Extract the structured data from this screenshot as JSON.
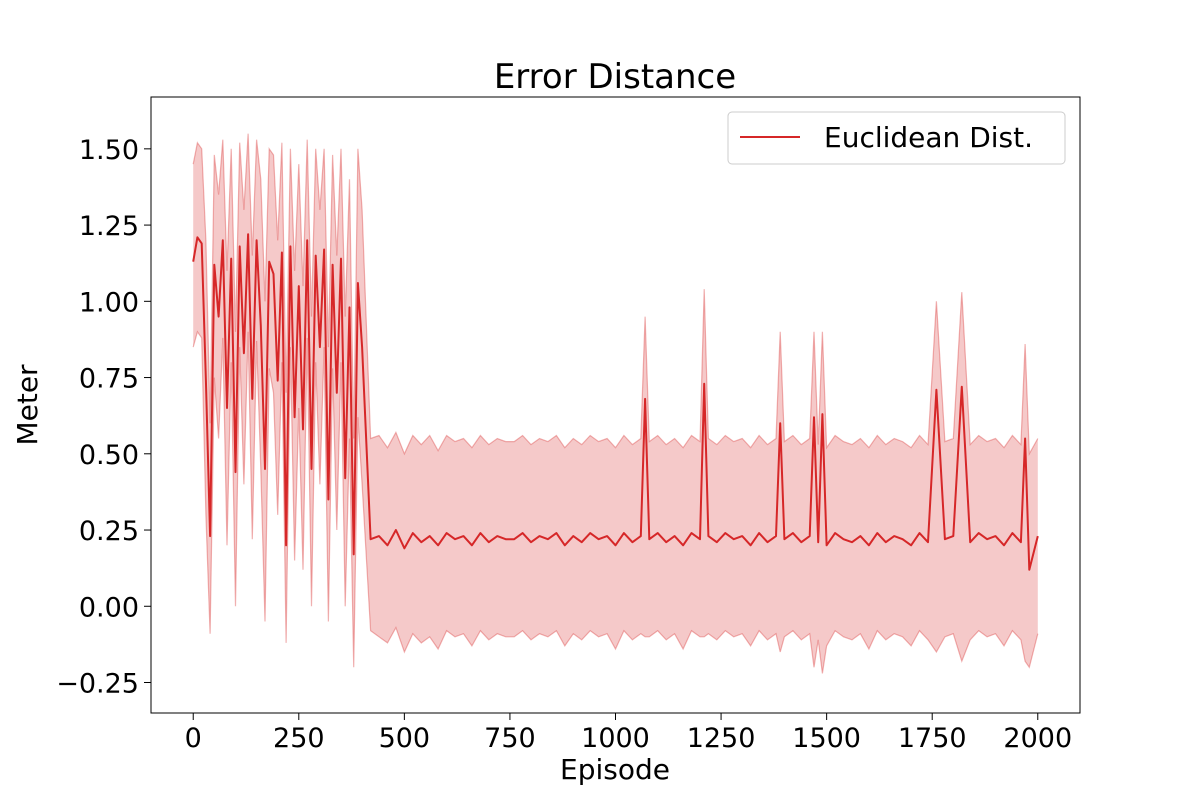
{
  "chart_data": {
    "type": "line",
    "title": "Error Distance",
    "xlabel": "Episode",
    "ylabel": "Meter",
    "xlim": [
      -100,
      2100
    ],
    "ylim": [
      -0.35,
      1.67
    ],
    "xticks": [
      0,
      250,
      500,
      750,
      1000,
      1250,
      1500,
      1750,
      2000
    ],
    "xtick_labels": [
      "0",
      "250",
      "500",
      "750",
      "1000",
      "1250",
      "1500",
      "1750",
      "2000"
    ],
    "yticks": [
      -0.25,
      0.0,
      0.25,
      0.5,
      0.75,
      1.0,
      1.25,
      1.5
    ],
    "ytick_labels": [
      "−0.25",
      "0.00",
      "0.25",
      "0.50",
      "0.75",
      "1.00",
      "1.25",
      "1.50"
    ],
    "grid": false,
    "legend": {
      "position": "upper right",
      "entries": [
        "Euclidean Dist."
      ]
    },
    "series": [
      {
        "name": "Euclidean Dist.",
        "color": "#d62728",
        "band_color": "#d62728",
        "x": [
          0,
          10,
          20,
          30,
          40,
          50,
          60,
          70,
          80,
          90,
          100,
          110,
          120,
          130,
          140,
          150,
          160,
          170,
          180,
          190,
          200,
          210,
          220,
          230,
          240,
          250,
          260,
          270,
          280,
          290,
          300,
          310,
          320,
          330,
          340,
          350,
          360,
          370,
          380,
          390,
          400,
          420,
          440,
          460,
          480,
          500,
          520,
          540,
          560,
          580,
          600,
          620,
          640,
          660,
          680,
          700,
          720,
          740,
          760,
          780,
          800,
          820,
          840,
          860,
          880,
          900,
          920,
          940,
          960,
          980,
          1000,
          1020,
          1040,
          1060,
          1070,
          1080,
          1100,
          1120,
          1140,
          1160,
          1180,
          1200,
          1210,
          1220,
          1240,
          1260,
          1280,
          1300,
          1320,
          1340,
          1360,
          1380,
          1390,
          1400,
          1420,
          1440,
          1460,
          1470,
          1480,
          1490,
          1500,
          1520,
          1540,
          1560,
          1580,
          1600,
          1620,
          1640,
          1660,
          1680,
          1700,
          1720,
          1740,
          1760,
          1780,
          1800,
          1820,
          1840,
          1860,
          1880,
          1900,
          1920,
          1940,
          1960,
          1970,
          1980,
          2000
        ],
        "y": [
          1.13,
          1.21,
          1.19,
          0.74,
          0.23,
          1.12,
          0.95,
          1.2,
          0.65,
          1.14,
          0.44,
          1.18,
          0.83,
          1.22,
          0.68,
          1.2,
          0.92,
          0.45,
          1.13,
          1.09,
          0.74,
          1.16,
          0.2,
          1.18,
          0.62,
          1.05,
          0.58,
          1.2,
          0.45,
          1.15,
          0.85,
          1.17,
          0.35,
          1.12,
          0.7,
          1.14,
          0.42,
          0.98,
          0.17,
          1.06,
          0.85,
          0.22,
          0.23,
          0.2,
          0.25,
          0.19,
          0.24,
          0.21,
          0.23,
          0.2,
          0.24,
          0.22,
          0.23,
          0.2,
          0.24,
          0.21,
          0.23,
          0.22,
          0.22,
          0.24,
          0.21,
          0.23,
          0.22,
          0.24,
          0.2,
          0.23,
          0.21,
          0.24,
          0.22,
          0.23,
          0.2,
          0.24,
          0.21,
          0.23,
          0.68,
          0.22,
          0.24,
          0.21,
          0.23,
          0.2,
          0.24,
          0.22,
          0.73,
          0.23,
          0.21,
          0.24,
          0.22,
          0.23,
          0.2,
          0.24,
          0.21,
          0.23,
          0.6,
          0.22,
          0.24,
          0.21,
          0.23,
          0.62,
          0.21,
          0.63,
          0.2,
          0.24,
          0.22,
          0.21,
          0.23,
          0.2,
          0.24,
          0.21,
          0.23,
          0.22,
          0.2,
          0.24,
          0.21,
          0.71,
          0.22,
          0.23,
          0.72,
          0.21,
          0.24,
          0.22,
          0.23,
          0.2,
          0.24,
          0.21,
          0.55,
          0.12,
          0.23
        ],
        "upper": [
          1.45,
          1.52,
          1.5,
          1.2,
          0.6,
          1.48,
          1.35,
          1.53,
          1.1,
          1.5,
          0.9,
          1.52,
          1.3,
          1.55,
          1.15,
          1.53,
          1.4,
          1.0,
          1.5,
          1.48,
          1.2,
          1.52,
          0.7,
          1.5,
          1.1,
          1.45,
          1.05,
          1.53,
          0.95,
          1.5,
          1.3,
          1.5,
          0.85,
          1.48,
          1.15,
          1.5,
          0.95,
          1.4,
          0.55,
          1.5,
          1.3,
          0.55,
          0.56,
          0.52,
          0.57,
          0.5,
          0.56,
          0.53,
          0.56,
          0.51,
          0.56,
          0.54,
          0.55,
          0.52,
          0.56,
          0.53,
          0.55,
          0.54,
          0.54,
          0.56,
          0.53,
          0.55,
          0.54,
          0.56,
          0.52,
          0.55,
          0.53,
          0.56,
          0.54,
          0.55,
          0.52,
          0.56,
          0.53,
          0.55,
          0.95,
          0.54,
          0.56,
          0.53,
          0.55,
          0.52,
          0.56,
          0.54,
          1.04,
          0.55,
          0.53,
          0.56,
          0.54,
          0.55,
          0.52,
          0.56,
          0.53,
          0.55,
          0.9,
          0.54,
          0.56,
          0.53,
          0.55,
          0.9,
          0.53,
          0.9,
          0.52,
          0.56,
          0.54,
          0.53,
          0.55,
          0.52,
          0.56,
          0.53,
          0.55,
          0.54,
          0.52,
          0.56,
          0.53,
          1.0,
          0.54,
          0.55,
          1.03,
          0.53,
          0.56,
          0.54,
          0.55,
          0.52,
          0.56,
          0.53,
          0.86,
          0.5,
          0.55
        ],
        "lower": [
          0.85,
          0.9,
          0.88,
          0.3,
          -0.09,
          0.75,
          0.55,
          0.88,
          0.2,
          0.8,
          0.0,
          0.85,
          0.4,
          0.9,
          0.22,
          0.87,
          0.45,
          -0.05,
          0.78,
          0.7,
          0.3,
          0.8,
          -0.12,
          0.85,
          0.15,
          0.65,
          0.12,
          0.88,
          0.0,
          0.8,
          0.4,
          0.85,
          -0.05,
          0.78,
          0.25,
          0.8,
          0.0,
          0.55,
          -0.2,
          0.62,
          0.4,
          -0.08,
          -0.1,
          -0.12,
          -0.07,
          -0.15,
          -0.09,
          -0.12,
          -0.1,
          -0.14,
          -0.08,
          -0.1,
          -0.09,
          -0.13,
          -0.08,
          -0.11,
          -0.09,
          -0.1,
          -0.1,
          -0.08,
          -0.11,
          -0.09,
          -0.1,
          -0.08,
          -0.13,
          -0.09,
          -0.11,
          -0.08,
          -0.1,
          -0.09,
          -0.14,
          -0.08,
          -0.11,
          -0.09,
          -0.1,
          -0.1,
          -0.08,
          -0.11,
          -0.09,
          -0.14,
          -0.08,
          -0.1,
          -0.1,
          -0.09,
          -0.11,
          -0.08,
          -0.1,
          -0.09,
          -0.13,
          -0.08,
          -0.11,
          -0.09,
          -0.15,
          -0.1,
          -0.08,
          -0.11,
          -0.09,
          -0.2,
          -0.11,
          -0.22,
          -0.13,
          -0.08,
          -0.1,
          -0.11,
          -0.09,
          -0.14,
          -0.08,
          -0.11,
          -0.09,
          -0.1,
          -0.13,
          -0.08,
          -0.11,
          -0.15,
          -0.1,
          -0.09,
          -0.18,
          -0.11,
          -0.08,
          -0.1,
          -0.09,
          -0.13,
          -0.08,
          -0.11,
          -0.18,
          -0.2,
          -0.09
        ]
      }
    ]
  }
}
